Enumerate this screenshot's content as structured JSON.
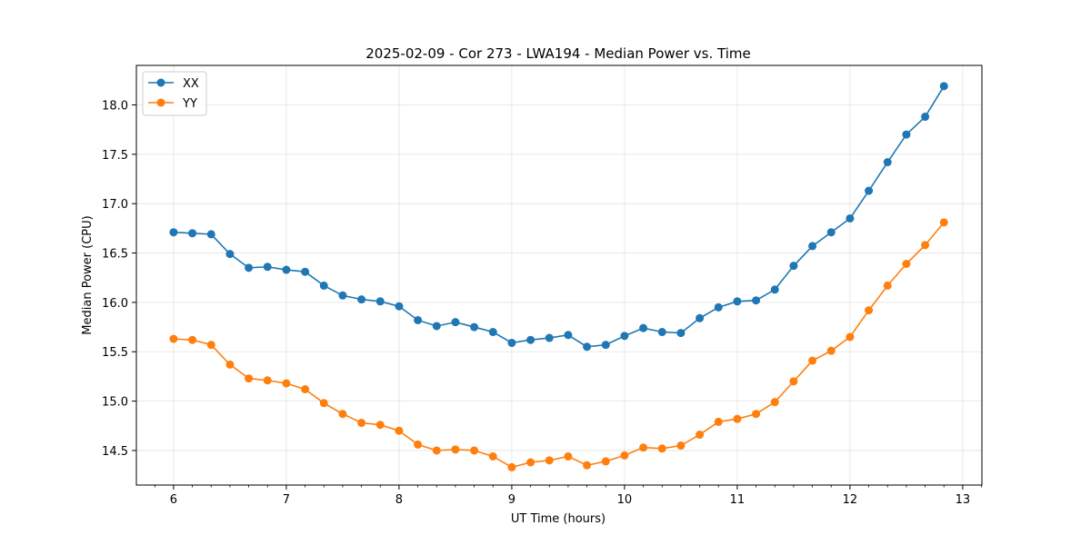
{
  "chart_data": {
    "type": "line",
    "title": "2025-02-09 - Cor 273 - LWA194 - Median Power vs. Time",
    "xlabel": "UT Time (hours)",
    "ylabel": "Median Power (CPU)",
    "xlim": [
      5.67,
      13.17
    ],
    "ylim": [
      14.15,
      18.4
    ],
    "x_ticks": [
      6,
      7,
      8,
      9,
      10,
      11,
      12,
      13
    ],
    "y_ticks": [
      14.5,
      15.0,
      15.5,
      16.0,
      16.5,
      17.0,
      17.5,
      18.0
    ],
    "grid": true,
    "legend_position": "top-left",
    "x": [
      6.0,
      6.1667,
      6.3333,
      6.5,
      6.6667,
      6.8333,
      7.0,
      7.1667,
      7.3333,
      7.5,
      7.6667,
      7.8333,
      8.0,
      8.1667,
      8.3333,
      8.5,
      8.6667,
      8.8333,
      9.0,
      9.1667,
      9.3333,
      9.5,
      9.6667,
      9.8333,
      10.0,
      10.1667,
      10.3333,
      10.5,
      10.6667,
      10.8333,
      11.0,
      11.1667,
      11.3333,
      11.5,
      11.6667,
      11.8333,
      12.0,
      12.1667,
      12.3333,
      12.5,
      12.6667,
      12.8333
    ],
    "series": [
      {
        "name": "XX",
        "color": "#1f77b4",
        "values": [
          16.71,
          16.7,
          16.69,
          16.49,
          16.35,
          16.36,
          16.33,
          16.31,
          16.17,
          16.07,
          16.03,
          16.01,
          15.96,
          15.82,
          15.76,
          15.8,
          15.75,
          15.7,
          15.59,
          15.62,
          15.64,
          15.67,
          15.55,
          15.57,
          15.66,
          15.74,
          15.7,
          15.69,
          15.84,
          15.95,
          16.01,
          16.02,
          16.13,
          16.37,
          16.57,
          16.71,
          16.85,
          17.13,
          17.42,
          17.7,
          17.88,
          18.19
        ]
      },
      {
        "name": "YY",
        "color": "#ff7f0e",
        "values": [
          15.63,
          15.62,
          15.57,
          15.37,
          15.23,
          15.21,
          15.18,
          15.12,
          14.98,
          14.87,
          14.78,
          14.76,
          14.7,
          14.56,
          14.5,
          14.51,
          14.5,
          14.44,
          14.33,
          14.38,
          14.4,
          14.44,
          14.35,
          14.39,
          14.45,
          14.53,
          14.52,
          14.55,
          14.66,
          14.79,
          14.82,
          14.87,
          14.99,
          15.2,
          15.41,
          15.51,
          15.65,
          15.92,
          16.17,
          16.39,
          16.58,
          16.81
        ]
      }
    ]
  }
}
